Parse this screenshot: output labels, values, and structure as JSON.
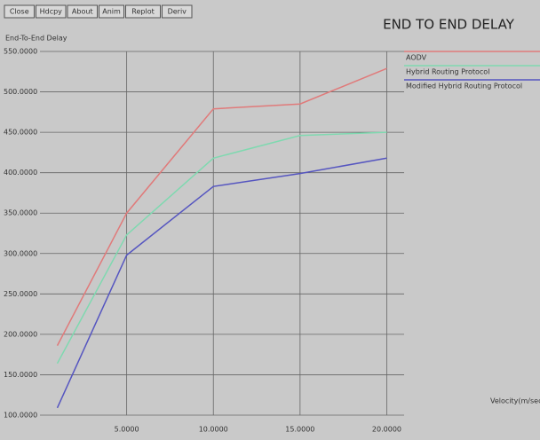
{
  "buttons": [
    "Close",
    "Hdcpy",
    "About",
    "Anim",
    "Replot",
    "Deriv"
  ],
  "chart_data": {
    "type": "line",
    "title": "END TO END DELAY",
    "y_label": "End-To-End Delay",
    "x_label": "Velocity(m/sec)",
    "x": [
      1,
      5,
      10,
      15,
      20
    ],
    "series": [
      {
        "name": "AODV",
        "color": "#e07a7a",
        "values": [
          186,
          350,
          479,
          485,
          529
        ]
      },
      {
        "name": "Hybrid Routing Protocol",
        "color": "#7fd9b0",
        "values": [
          164,
          323,
          418,
          446,
          450
        ]
      },
      {
        "name": "Modified Hybrid Routing Protocol",
        "color": "#5555c0",
        "values": [
          109,
          298,
          383,
          399,
          418
        ]
      }
    ],
    "xlim": [
      0,
      21
    ],
    "ylim": [
      100,
      550
    ],
    "xticks": [
      {
        "value": 5,
        "label": "5.0000"
      },
      {
        "value": 10,
        "label": "10.0000"
      },
      {
        "value": 15,
        "label": "15.0000"
      },
      {
        "value": 20,
        "label": "20.0000"
      }
    ],
    "yticks": [
      {
        "value": 100,
        "label": "100.0000"
      },
      {
        "value": 150,
        "label": "150.0000"
      },
      {
        "value": 200,
        "label": "200.0000"
      },
      {
        "value": 250,
        "label": "250.0000"
      },
      {
        "value": 300,
        "label": "300.0000"
      },
      {
        "value": 350,
        "label": "350.0000"
      },
      {
        "value": 400,
        "label": "400.0000"
      },
      {
        "value": 450,
        "label": "450.0000"
      },
      {
        "value": 500,
        "label": "500.0000"
      },
      {
        "value": 550,
        "label": "550.0000"
      }
    ],
    "grid": true
  }
}
